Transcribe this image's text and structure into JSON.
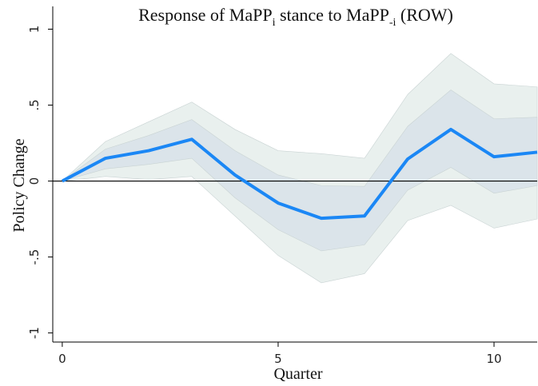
{
  "chart_data": {
    "type": "line",
    "title": [
      "Response of MaPP",
      "i",
      " stance to MaPP",
      "-i",
      " (ROW)"
    ],
    "x_label": "Quarter",
    "y_label": "Policy Change",
    "x": [
      0,
      1,
      2,
      3,
      4,
      5,
      6,
      7,
      8,
      9,
      10,
      11
    ],
    "series": [
      {
        "color": "#1b87f5",
        "values": [
          0,
          0.15,
          0.2,
          0.275,
          0.04,
          -0.145,
          -0.245,
          -0.23,
          0.145,
          0.34,
          0.16,
          0.19
        ]
      }
    ],
    "bands": [
      {
        "color": "#e9f0ee",
        "lower": [
          0,
          0.03,
          0.01,
          0.03,
          -0.23,
          -0.49,
          -0.67,
          -0.61,
          -0.26,
          -0.16,
          -0.31,
          -0.25
        ],
        "upper": [
          0,
          0.26,
          0.39,
          0.52,
          0.34,
          0.2,
          0.18,
          0.15,
          0.57,
          0.84,
          0.64,
          0.62
        ]
      },
      {
        "color": "#dbe4ea",
        "lower": [
          0,
          0.08,
          0.11,
          0.15,
          -0.11,
          -0.32,
          -0.46,
          -0.42,
          -0.06,
          0.09,
          -0.08,
          -0.03
        ],
        "upper": [
          0,
          0.21,
          0.3,
          0.405,
          0.2,
          0.04,
          -0.03,
          -0.035,
          0.36,
          0.6,
          0.41,
          0.42
        ]
      }
    ],
    "reference_line": 0,
    "xlim": [
      -0.22,
      11
    ],
    "ylim": [
      -1.06,
      1.15
    ],
    "xticks": [
      0,
      5,
      10
    ],
    "yticks": [
      1,
      {
        "value": 0.5,
        "label": ".5"
      },
      0,
      {
        "value": -0.5,
        "label": "-.5"
      },
      -1
    ]
  }
}
